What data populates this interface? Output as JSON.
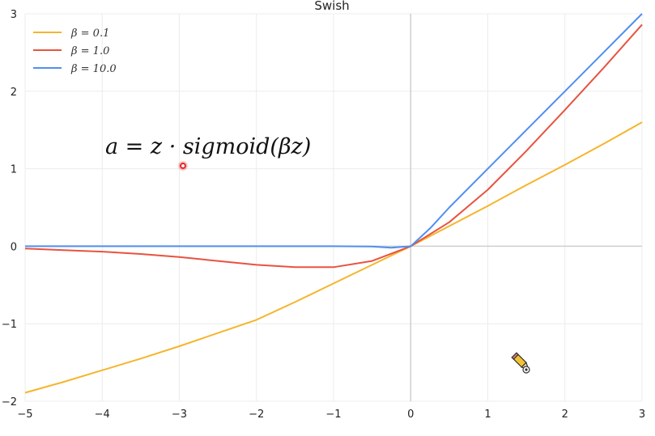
{
  "chart_data": {
    "type": "line",
    "title": "Swish",
    "xlabel": "",
    "ylabel": "",
    "xlim": [
      -5,
      3
    ],
    "ylim": [
      -2,
      3
    ],
    "xticks": [
      -5,
      -4,
      -3,
      -2,
      -1,
      0,
      1,
      2,
      3
    ],
    "yticks": [
      -2,
      -1,
      0,
      1,
      2,
      3
    ],
    "xtick_labels": [
      "−5",
      "−4",
      "−3",
      "−2",
      "−1",
      "0",
      "1",
      "2",
      "3"
    ],
    "ytick_labels": [
      "−2",
      "−1",
      "0",
      "1",
      "2",
      "3"
    ],
    "grid": true,
    "legend_position": "top-left",
    "series": [
      {
        "name": "β = 0.1",
        "beta": 0.1,
        "color": "#f5b52c",
        "x": [
          -5,
          -4.5,
          -4,
          -3.5,
          -3,
          -2.5,
          -2,
          -1.5,
          -1,
          -0.5,
          0,
          0.5,
          1,
          1.5,
          2,
          2.5,
          3
        ],
        "y": [
          -1.89,
          -1.75,
          -1.6,
          -1.45,
          -1.29,
          -1.12,
          -0.95,
          -0.72,
          -0.48,
          -0.24,
          0.0,
          0.26,
          0.52,
          0.79,
          1.05,
          1.32,
          1.6
        ]
      },
      {
        "name": "β = 1.0",
        "beta": 1.0,
        "color": "#e8533f",
        "x": [
          -5,
          -4.5,
          -4,
          -3.5,
          -3,
          -2.5,
          -2,
          -1.5,
          -1,
          -0.5,
          0,
          0.5,
          1,
          1.5,
          2,
          2.5,
          3
        ],
        "y": [
          -0.03,
          -0.05,
          -0.07,
          -0.1,
          -0.14,
          -0.19,
          -0.24,
          -0.27,
          -0.27,
          -0.19,
          0.0,
          0.31,
          0.73,
          1.23,
          1.76,
          2.3,
          2.86
        ]
      },
      {
        "name": "β = 10.0",
        "beta": 10.0,
        "color": "#4f8ff0",
        "x": [
          -5,
          -4.5,
          -4,
          -3.5,
          -3,
          -2.5,
          -2,
          -1.5,
          -1,
          -0.5,
          -0.25,
          0,
          0.25,
          0.5,
          1,
          1.5,
          2,
          2.5,
          3
        ],
        "y": [
          0.0,
          0.0,
          0.0,
          0.0,
          0.0,
          0.0,
          0.0,
          0.0,
          0.0,
          -0.003,
          -0.02,
          0.0,
          0.23,
          0.5,
          1.0,
          1.5,
          2.0,
          2.5,
          3.0
        ]
      }
    ]
  },
  "annotation": {
    "formula": "a = z · sigmoid(βz)"
  },
  "icons": {
    "cursor": "red-pointer-dot-icon",
    "pencil": "pencil-cursor-icon"
  }
}
